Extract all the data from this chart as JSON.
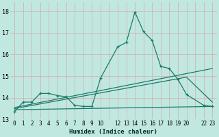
{
  "xlabel": "Humidex (Indice chaleur)",
  "bg_color": "#c0e8e0",
  "grid_color": "#d8a8a8",
  "line_color": "#1a7a6a",
  "xlim": [
    -0.5,
    23.5
  ],
  "ylim": [
    13.0,
    18.4
  ],
  "yticks": [
    13,
    14,
    15,
    16,
    17,
    18
  ],
  "xtick_labels": [
    "0",
    "1",
    "2",
    "3",
    "4",
    "5",
    "6",
    "7",
    "8",
    "9",
    "10",
    "",
    "12",
    "13",
    "14",
    "15",
    "16",
    "17",
    "18",
    "19",
    "20",
    "",
    "22",
    "23"
  ],
  "main_x": [
    0,
    1,
    2,
    3,
    4,
    5,
    6,
    7,
    8,
    9,
    10,
    12,
    13,
    14,
    15,
    16,
    17,
    18,
    19,
    20,
    22,
    23
  ],
  "main_y": [
    13.35,
    13.8,
    13.8,
    14.2,
    14.2,
    14.1,
    14.05,
    13.65,
    13.6,
    13.6,
    14.9,
    16.35,
    16.55,
    17.95,
    17.05,
    16.65,
    15.45,
    15.35,
    14.85,
    14.15,
    13.65,
    13.6
  ],
  "upper_line_x": [
    0,
    23
  ],
  "upper_line_y": [
    13.55,
    15.35
  ],
  "mid_line_x": [
    0,
    20,
    23
  ],
  "mid_line_y": [
    13.5,
    14.95,
    13.8
  ],
  "lower_line_x": [
    0,
    23
  ],
  "lower_line_y": [
    13.45,
    13.6
  ]
}
